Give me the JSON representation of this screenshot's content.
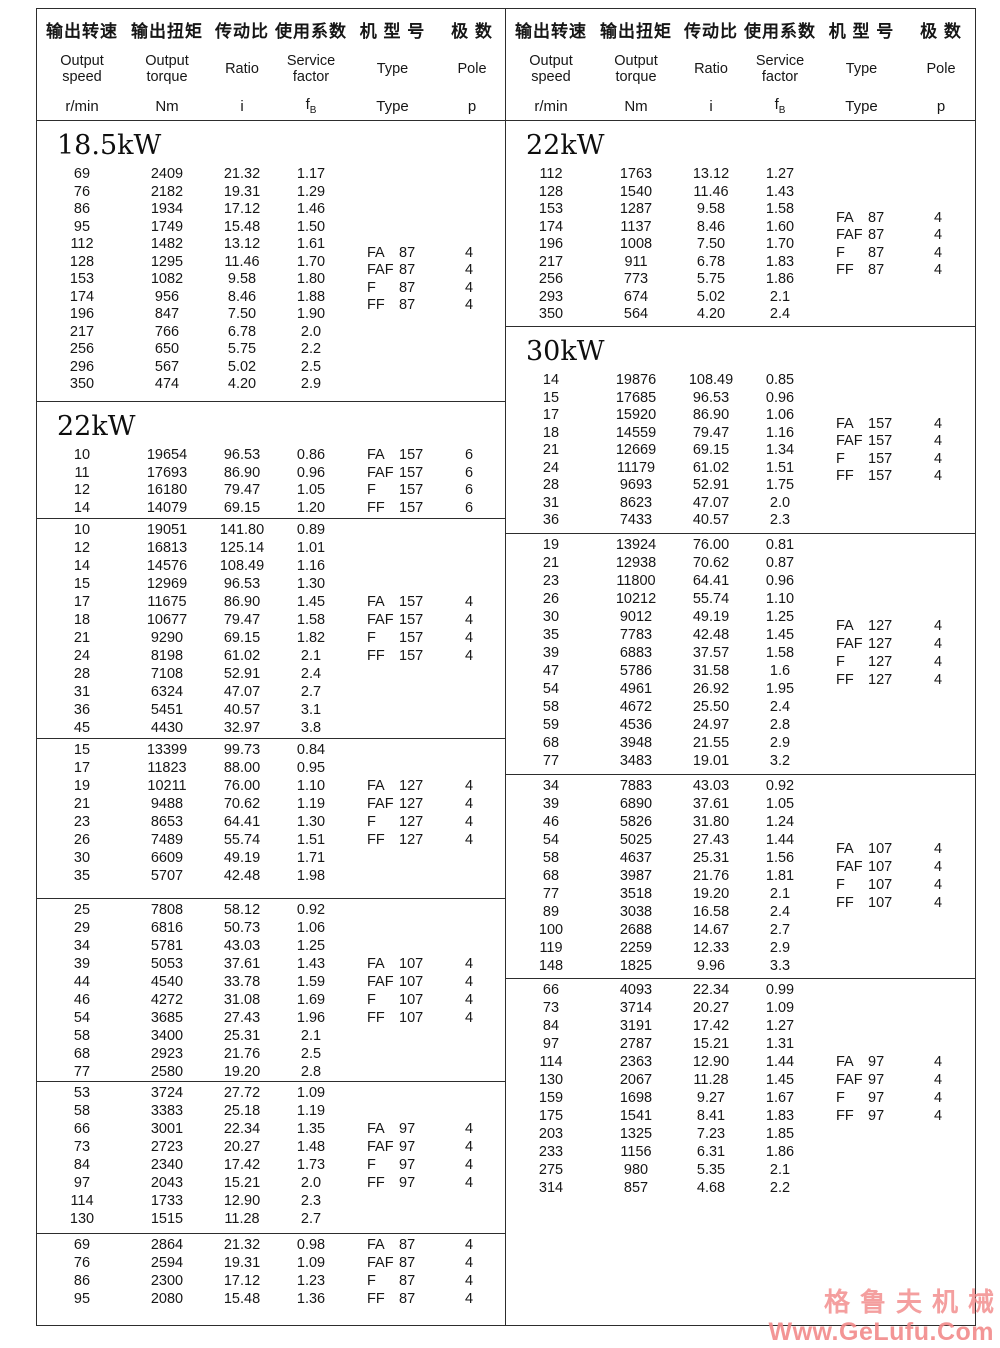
{
  "header": {
    "columns": [
      {
        "zh": "输出转速",
        "en": "Output\nspeed",
        "unit": "r/min"
      },
      {
        "zh": "输出扭矩",
        "en": "Output\ntorque",
        "unit": "Nm"
      },
      {
        "zh": "传动比",
        "en": "Ratio",
        "unit": "i"
      },
      {
        "zh": "使用系数",
        "en": "Service\nfactor"
      },
      {
        "zh": "机 型 号",
        "en": "Type",
        "unit": "Type"
      },
      {
        "zh": "极 数",
        "en": "Pole",
        "unit": "p"
      }
    ],
    "service_factor_unit": {
      "base": "f",
      "sub": "B"
    }
  },
  "sections": {
    "left": [
      {
        "power": "18.5kW",
        "rows": [
          [
            "69",
            "2409",
            "21.32",
            "1.17"
          ],
          [
            "76",
            "2182",
            "19.31",
            "1.29"
          ],
          [
            "86",
            "1934",
            "17.12",
            "1.46"
          ],
          [
            "95",
            "1749",
            "15.48",
            "1.50"
          ],
          [
            "112",
            "1482",
            "13.12",
            "1.61"
          ],
          [
            "128",
            "1295",
            "11.46",
            "1.70"
          ],
          [
            "153",
            "1082",
            "9.58",
            "1.80"
          ],
          [
            "174",
            "956",
            "8.46",
            "1.88"
          ],
          [
            "196",
            "847",
            "7.50",
            "1.90"
          ],
          [
            "217",
            "766",
            "6.78",
            "2.0"
          ],
          [
            "256",
            "650",
            "5.75",
            "2.2"
          ],
          [
            "296",
            "567",
            "5.02",
            "2.5"
          ],
          [
            "350",
            "474",
            "4.20",
            "2.9"
          ]
        ],
        "types": [
          [
            "FA",
            "87",
            "4"
          ],
          [
            "FAF",
            "87",
            "4"
          ],
          [
            "F",
            "87",
            "4"
          ],
          [
            "FF",
            "87",
            "4"
          ]
        ]
      },
      {
        "power": "22kW",
        "rows": [
          [
            "10",
            "19654",
            "96.53",
            "0.86"
          ],
          [
            "11",
            "17693",
            "86.90",
            "0.96"
          ],
          [
            "12",
            "16180",
            "79.47",
            "1.05"
          ],
          [
            "14",
            "14079",
            "69.15",
            "1.20"
          ]
        ],
        "types": [
          [
            "FA",
            "157",
            "6"
          ],
          [
            "FAF",
            "157",
            "6"
          ],
          [
            "F",
            "157",
            "6"
          ],
          [
            "FF",
            "157",
            "6"
          ]
        ]
      },
      {
        "rows": [
          [
            "10",
            "19051",
            "141.80",
            "0.89"
          ],
          [
            "12",
            "16813",
            "125.14",
            "1.01"
          ],
          [
            "14",
            "14576",
            "108.49",
            "1.16"
          ],
          [
            "15",
            "12969",
            "96.53",
            "1.30"
          ],
          [
            "17",
            "11675",
            "86.90",
            "1.45"
          ],
          [
            "18",
            "10677",
            "79.47",
            "1.58"
          ],
          [
            "21",
            "9290",
            "69.15",
            "1.82"
          ],
          [
            "24",
            "8198",
            "61.02",
            "2.1"
          ],
          [
            "28",
            "7108",
            "52.91",
            "2.4"
          ],
          [
            "31",
            "6324",
            "47.07",
            "2.7"
          ],
          [
            "36",
            "5451",
            "40.57",
            "3.1"
          ],
          [
            "45",
            "4430",
            "32.97",
            "3.8"
          ]
        ],
        "types": [
          [
            "FA",
            "157",
            "4"
          ],
          [
            "FAF",
            "157",
            "4"
          ],
          [
            "F",
            "157",
            "4"
          ],
          [
            "FF",
            "157",
            "4"
          ]
        ]
      },
      {
        "rows": [
          [
            "15",
            "13399",
            "99.73",
            "0.84"
          ],
          [
            "17",
            "11823",
            "88.00",
            "0.95"
          ],
          [
            "19",
            "10211",
            "76.00",
            "1.10"
          ],
          [
            "21",
            "9488",
            "70.62",
            "1.19"
          ],
          [
            "23",
            "8653",
            "64.41",
            "1.30"
          ],
          [
            "26",
            "7489",
            "55.74",
            "1.51"
          ],
          [
            "30",
            "6609",
            "49.19",
            "1.71"
          ],
          [
            "35",
            "5707",
            "42.48",
            "1.98"
          ]
        ],
        "types": [
          [
            "FA",
            "127",
            "4"
          ],
          [
            "FAF",
            "127",
            "4"
          ],
          [
            "F",
            "127",
            "4"
          ],
          [
            "FF",
            "127",
            "4"
          ]
        ]
      },
      {
        "rows": [
          [
            "25",
            "7808",
            "58.12",
            "0.92"
          ],
          [
            "29",
            "6816",
            "50.73",
            "1.06"
          ],
          [
            "34",
            "5781",
            "43.03",
            "1.25"
          ],
          [
            "39",
            "5053",
            "37.61",
            "1.43"
          ],
          [
            "44",
            "4540",
            "33.78",
            "1.59"
          ],
          [
            "46",
            "4272",
            "31.08",
            "1.69"
          ],
          [
            "54",
            "3685",
            "27.43",
            "1.96"
          ],
          [
            "58",
            "3400",
            "25.31",
            "2.1"
          ],
          [
            "68",
            "2923",
            "21.76",
            "2.5"
          ],
          [
            "77",
            "2580",
            "19.20",
            "2.8"
          ]
        ],
        "types": [
          [
            "FA",
            "107",
            "4"
          ],
          [
            "FAF",
            "107",
            "4"
          ],
          [
            "F",
            "107",
            "4"
          ],
          [
            "FF",
            "107",
            "4"
          ]
        ]
      },
      {
        "rows": [
          [
            "53",
            "3724",
            "27.72",
            "1.09"
          ],
          [
            "58",
            "3383",
            "25.18",
            "1.19"
          ],
          [
            "66",
            "3001",
            "22.34",
            "1.35"
          ],
          [
            "73",
            "2723",
            "20.27",
            "1.48"
          ],
          [
            "84",
            "2340",
            "17.42",
            "1.73"
          ],
          [
            "97",
            "2043",
            "15.21",
            "2.0"
          ],
          [
            "114",
            "1733",
            "12.90",
            "2.3"
          ],
          [
            "130",
            "1515",
            "11.28",
            "2.7"
          ]
        ],
        "types": [
          [
            "FA",
            "97",
            "4"
          ],
          [
            "FAF",
            "97",
            "4"
          ],
          [
            "F",
            "97",
            "4"
          ],
          [
            "FF",
            "97",
            "4"
          ]
        ]
      },
      {
        "rows": [
          [
            "69",
            "2864",
            "21.32",
            "0.98"
          ],
          [
            "76",
            "2594",
            "19.31",
            "1.09"
          ],
          [
            "86",
            "2300",
            "17.12",
            "1.23"
          ],
          [
            "95",
            "2080",
            "15.48",
            "1.36"
          ]
        ],
        "types": [
          [
            "FA",
            "87",
            "4"
          ],
          [
            "FAF",
            "87",
            "4"
          ],
          [
            "F",
            "87",
            "4"
          ],
          [
            "FF",
            "87",
            "4"
          ]
        ]
      }
    ],
    "right": [
      {
        "power": "22kW",
        "rows": [
          [
            "112",
            "1763",
            "13.12",
            "1.27"
          ],
          [
            "128",
            "1540",
            "11.46",
            "1.43"
          ],
          [
            "153",
            "1287",
            "9.58",
            "1.58"
          ],
          [
            "174",
            "1137",
            "8.46",
            "1.60"
          ],
          [
            "196",
            "1008",
            "7.50",
            "1.70"
          ],
          [
            "217",
            "911",
            "6.78",
            "1.83"
          ],
          [
            "256",
            "773",
            "5.75",
            "1.86"
          ],
          [
            "293",
            "674",
            "5.02",
            "2.1"
          ],
          [
            "350",
            "564",
            "4.20",
            "2.4"
          ]
        ],
        "types": [
          [
            "FA",
            "87",
            "4"
          ],
          [
            "FAF",
            "87",
            "4"
          ],
          [
            "F",
            "87",
            "4"
          ],
          [
            "FF",
            "87",
            "4"
          ]
        ]
      },
      {
        "power": "30kW",
        "rows": [
          [
            "14",
            "19876",
            "108.49",
            "0.85"
          ],
          [
            "15",
            "17685",
            "96.53",
            "0.96"
          ],
          [
            "17",
            "15920",
            "86.90",
            "1.06"
          ],
          [
            "18",
            "14559",
            "79.47",
            "1.16"
          ],
          [
            "21",
            "12669",
            "69.15",
            "1.34"
          ],
          [
            "24",
            "11179",
            "61.02",
            "1.51"
          ],
          [
            "28",
            "9693",
            "52.91",
            "1.75"
          ],
          [
            "31",
            "8623",
            "47.07",
            "2.0"
          ],
          [
            "36",
            "7433",
            "40.57",
            "2.3"
          ]
        ],
        "types": [
          [
            "FA",
            "157",
            "4"
          ],
          [
            "FAF",
            "157",
            "4"
          ],
          [
            "F",
            "157",
            "4"
          ],
          [
            "FF",
            "157",
            "4"
          ]
        ]
      },
      {
        "rows": [
          [
            "19",
            "13924",
            "76.00",
            "0.81"
          ],
          [
            "21",
            "12938",
            "70.62",
            "0.87"
          ],
          [
            "23",
            "11800",
            "64.41",
            "0.96"
          ],
          [
            "26",
            "10212",
            "55.74",
            "1.10"
          ],
          [
            "30",
            "9012",
            "49.19",
            "1.25"
          ],
          [
            "35",
            "7783",
            "42.48",
            "1.45"
          ],
          [
            "39",
            "6883",
            "37.57",
            "1.58"
          ],
          [
            "47",
            "5786",
            "31.58",
            "1.6"
          ],
          [
            "54",
            "4961",
            "26.92",
            "1.95"
          ],
          [
            "58",
            "4672",
            "25.50",
            "2.4"
          ],
          [
            "59",
            "4536",
            "24.97",
            "2.8"
          ],
          [
            "68",
            "3948",
            "21.55",
            "2.9"
          ],
          [
            "77",
            "3483",
            "19.01",
            "3.2"
          ]
        ],
        "types": [
          [
            "FA",
            "127",
            "4"
          ],
          [
            "FAF",
            "127",
            "4"
          ],
          [
            "F",
            "127",
            "4"
          ],
          [
            "FF",
            "127",
            "4"
          ]
        ]
      },
      {
        "rows": [
          [
            "34",
            "7883",
            "43.03",
            "0.92"
          ],
          [
            "39",
            "6890",
            "37.61",
            "1.05"
          ],
          [
            "46",
            "5826",
            "31.80",
            "1.24"
          ],
          [
            "54",
            "5025",
            "27.43",
            "1.44"
          ],
          [
            "58",
            "4637",
            "25.31",
            "1.56"
          ],
          [
            "68",
            "3987",
            "21.76",
            "1.81"
          ],
          [
            "77",
            "3518",
            "19.20",
            "2.1"
          ],
          [
            "89",
            "3038",
            "16.58",
            "2.4"
          ],
          [
            "100",
            "2688",
            "14.67",
            "2.7"
          ],
          [
            "119",
            "2259",
            "12.33",
            "2.9"
          ],
          [
            "148",
            "1825",
            "9.96",
            "3.3"
          ]
        ],
        "types": [
          [
            "FA",
            "107",
            "4"
          ],
          [
            "FAF",
            "107",
            "4"
          ],
          [
            "F",
            "107",
            "4"
          ],
          [
            "FF",
            "107",
            "4"
          ]
        ]
      },
      {
        "rows": [
          [
            "66",
            "4093",
            "22.34",
            "0.99"
          ],
          [
            "73",
            "3714",
            "20.27",
            "1.09"
          ],
          [
            "84",
            "3191",
            "17.42",
            "1.27"
          ],
          [
            "97",
            "2787",
            "15.21",
            "1.31"
          ],
          [
            "114",
            "2363",
            "12.90",
            "1.44"
          ],
          [
            "130",
            "2067",
            "11.28",
            "1.45"
          ],
          [
            "159",
            "1698",
            "9.27",
            "1.67"
          ],
          [
            "175",
            "1541",
            "8.41",
            "1.83"
          ],
          [
            "203",
            "1325",
            "7.23",
            "1.85"
          ],
          [
            "233",
            "1156",
            "6.31",
            "1.86"
          ],
          [
            "275",
            "980",
            "5.35",
            "2.1"
          ],
          [
            "314",
            "857",
            "4.68",
            "2.2"
          ]
        ],
        "types": [
          [
            "FA",
            "97",
            "4"
          ],
          [
            "FAF",
            "97",
            "4"
          ],
          [
            "F",
            "97",
            "4"
          ],
          [
            "FF",
            "97",
            "4"
          ]
        ]
      }
    ]
  },
  "watermark": {
    "company": "格鲁夫机械",
    "url": "Www.GeLufu.Com",
    "color": "#f28a8a"
  }
}
